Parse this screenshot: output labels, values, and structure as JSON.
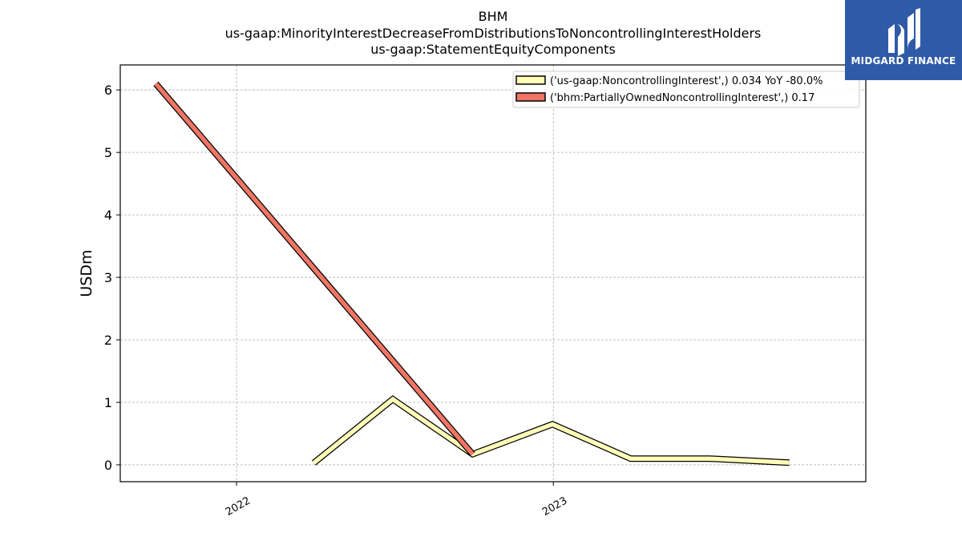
{
  "header": {
    "ticker": "BHM",
    "concept": "us-gaap:MinorityInterestDecreaseFromDistributionsToNoncontrollingInterestHolders",
    "statement": "us-gaap:StatementEquityComponents"
  },
  "logo": {
    "text": "MIDGARD FINANCE",
    "color": "#2f5aa8"
  },
  "chart_data": {
    "type": "line",
    "title": "BHM",
    "ylabel": "USDm",
    "xlabel": "",
    "ylim": [
      -0.27,
      6.4
    ],
    "xlim": [
      "2021-08-20",
      "2023-12-27"
    ],
    "grid": true,
    "legend_position": "top-right",
    "x_ticks": [
      {
        "date": "2022-01-01",
        "label": "2022"
      },
      {
        "date": "2023-01-01",
        "label": "2023"
      }
    ],
    "y_ticks": [
      0,
      1,
      2,
      3,
      4,
      5,
      6
    ],
    "series": [
      {
        "name": "('us-gaap:NoncontrollingInterest',) 0.034 YoY -80.0%",
        "color": "#fffdb8",
        "points": [
          {
            "x": "2022-03-31",
            "y": 0.03
          },
          {
            "x": "2022-06-30",
            "y": 1.05
          },
          {
            "x": "2022-09-30",
            "y": 0.17
          },
          {
            "x": "2022-12-31",
            "y": 0.65
          },
          {
            "x": "2023-03-31",
            "y": 0.1
          },
          {
            "x": "2023-06-30",
            "y": 0.1
          },
          {
            "x": "2023-09-30",
            "y": 0.034
          }
        ]
      },
      {
        "name": "('bhm:PartiallyOwnedNoncontrollingInterest',) 0.17",
        "color": "#f07565",
        "points": [
          {
            "x": "2021-09-30",
            "y": 6.1
          },
          {
            "x": "2022-09-30",
            "y": 0.17
          }
        ]
      }
    ]
  }
}
